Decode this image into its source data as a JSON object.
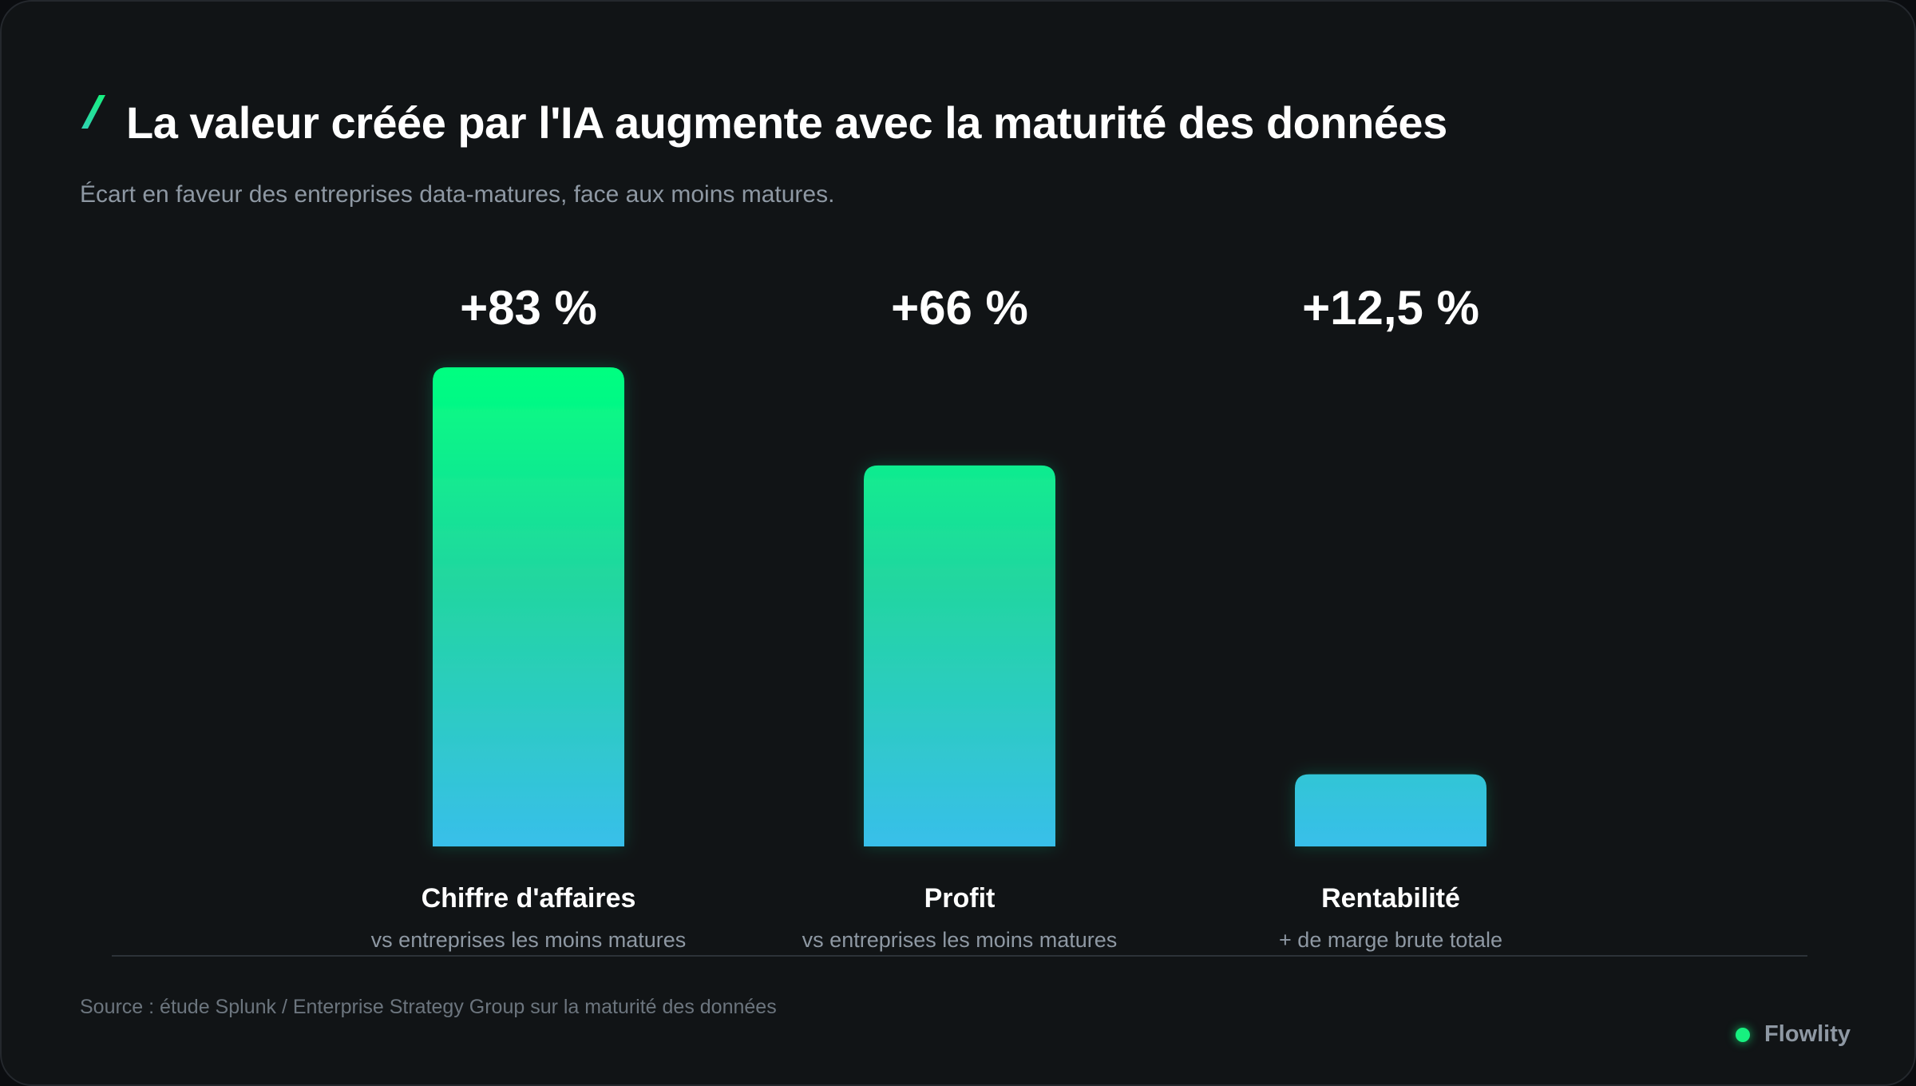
{
  "header": {
    "title": "La valeur créée par l'IA augmente avec la maturité des données",
    "subtitle": "Écart en faveur des entreprises data-matures, face aux moins matures."
  },
  "chart_data": {
    "type": "bar",
    "categories": [
      "Chiffre d'affaires",
      "Profit",
      "Rentabilité"
    ],
    "sublabels": [
      "vs entreprises les moins matures",
      "vs entreprises les moins matures",
      "+ de marge brute totale"
    ],
    "values": [
      83,
      66,
      12.5
    ],
    "value_labels": [
      "+83 %",
      "+66 %",
      "+12,5 %"
    ],
    "unit": "%",
    "title": "La valeur créée par l'IA augmente avec la maturité des données",
    "xlabel": "",
    "ylabel": "",
    "ylim": [
      0,
      83
    ],
    "grid": false,
    "legend": "none",
    "colors": {
      "bar_gradient_top": "#00ff80",
      "bar_gradient_mid": "#22d6a0",
      "bar_gradient_bottom": "#38bfea",
      "baseline": "#2c3238"
    }
  },
  "footer": {
    "source": "Source : étude Splunk / Enterprise Strategy Group sur la maturité des données",
    "brand": "Flowlity"
  },
  "colors": {
    "background": "#111416",
    "accent": "#17f07f",
    "text_primary": "#ffffff",
    "text_secondary": "#8e98a3"
  },
  "icons": {
    "title_mark": "accent-slash-icon",
    "brand_mark": "brand-dot-icon"
  }
}
